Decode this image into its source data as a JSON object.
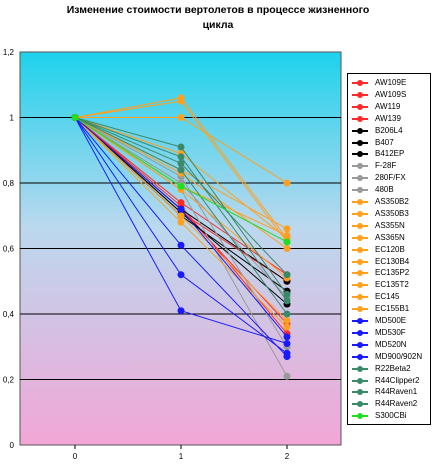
{
  "chart_data": {
    "type": "line",
    "title": "Изменение стоимости вертолетов в процессе жизненного цикла",
    "title_lines": [
      "Изменение стоимости вертолетов в процессе жизненного",
      "цикла"
    ],
    "xlabel": "",
    "ylabel": "",
    "x": [
      0,
      1,
      2
    ],
    "x_ticks": [
      "0",
      "1",
      "2"
    ],
    "y_ticks": [
      "0",
      "0,2",
      "0,4",
      "0,6",
      "0,8",
      "1",
      "1,2"
    ],
    "ylim": [
      0,
      1.2
    ],
    "grid": true,
    "legend_position": "right",
    "background": "gradient cyan to pink",
    "series": [
      {
        "name": "AW109E",
        "color": "#ff2a2a",
        "values": [
          1,
          0.73,
          0.34
        ]
      },
      {
        "name": "AW109S",
        "color": "#ff2a2a",
        "values": [
          1,
          0.72,
          0.37
        ]
      },
      {
        "name": "AW119",
        "color": "#ff2a2a",
        "values": [
          1,
          0.74,
          0.52
        ]
      },
      {
        "name": "AW139",
        "color": "#ff2a2a",
        "values": [
          1,
          0.71,
          0.5
        ]
      },
      {
        "name": "B206L4",
        "color": "#000000",
        "values": [
          1,
          0.71,
          0.43
        ]
      },
      {
        "name": "B407",
        "color": "#000000",
        "values": [
          1,
          0.7,
          0.47
        ]
      },
      {
        "name": "B412EP",
        "color": "#000000",
        "values": [
          1,
          0.72,
          0.5
        ]
      },
      {
        "name": "F-28F",
        "color": "#999999",
        "values": [
          1,
          0.8,
          0.45
        ]
      },
      {
        "name": "280F/FX",
        "color": "#999999",
        "values": [
          1,
          0.78,
          0.21
        ]
      },
      {
        "name": "480B",
        "color": "#999999",
        "values": [
          1,
          0.82,
          0.3
        ]
      },
      {
        "name": "AS350B2",
        "color": "#ffa020",
        "values": [
          1,
          1.06,
          0.63
        ]
      },
      {
        "name": "AS350B3",
        "color": "#ffa020",
        "values": [
          1,
          1.05,
          0.62
        ]
      },
      {
        "name": "AS355N",
        "color": "#ffa020",
        "values": [
          1,
          1.0,
          0.8
        ]
      },
      {
        "name": "AS365N",
        "color": "#ffa020",
        "values": [
          1,
          0.84,
          0.66
        ]
      },
      {
        "name": "EC120B",
        "color": "#ffa020",
        "values": [
          1,
          0.83,
          0.6
        ]
      },
      {
        "name": "EC130B4",
        "color": "#ffa020",
        "values": [
          1,
          0.79,
          0.64
        ]
      },
      {
        "name": "EC135P2",
        "color": "#ffa020",
        "values": [
          1,
          0.68,
          0.36
        ]
      },
      {
        "name": "EC135T2",
        "color": "#ffa020",
        "values": [
          1,
          0.7,
          0.38
        ]
      },
      {
        "name": "EC145",
        "color": "#ffa020",
        "values": [
          1,
          0.89,
          0.63
        ]
      },
      {
        "name": "EC155B1",
        "color": "#ffa020",
        "values": [
          1,
          0.78,
          0.51
        ]
      },
      {
        "name": "MD500E",
        "color": "#1a1aff",
        "values": [
          1,
          0.61,
          0.27
        ]
      },
      {
        "name": "MD530F",
        "color": "#1a1aff",
        "values": [
          1,
          0.52,
          0.28
        ]
      },
      {
        "name": "MD520N",
        "color": "#1a1aff",
        "values": [
          1,
          0.41,
          0.31
        ]
      },
      {
        "name": "MD900/902N",
        "color": "#1a1aff",
        "values": [
          1,
          0.72,
          0.33
        ]
      },
      {
        "name": "R22Beta2",
        "color": "#3a8a6a",
        "values": [
          1,
          0.91,
          0.46
        ]
      },
      {
        "name": "R44Clipper2",
        "color": "#3a8a6a",
        "values": [
          1,
          0.88,
          0.44
        ]
      },
      {
        "name": "R44Raven1",
        "color": "#3a8a6a",
        "values": [
          1,
          0.84,
          0.4
        ]
      },
      {
        "name": "R44Raven2",
        "color": "#3a8a6a",
        "values": [
          1,
          0.86,
          0.52
        ]
      },
      {
        "name": "S300CBi",
        "color": "#22dd22",
        "values": [
          1,
          0.79,
          0.62
        ]
      }
    ]
  }
}
